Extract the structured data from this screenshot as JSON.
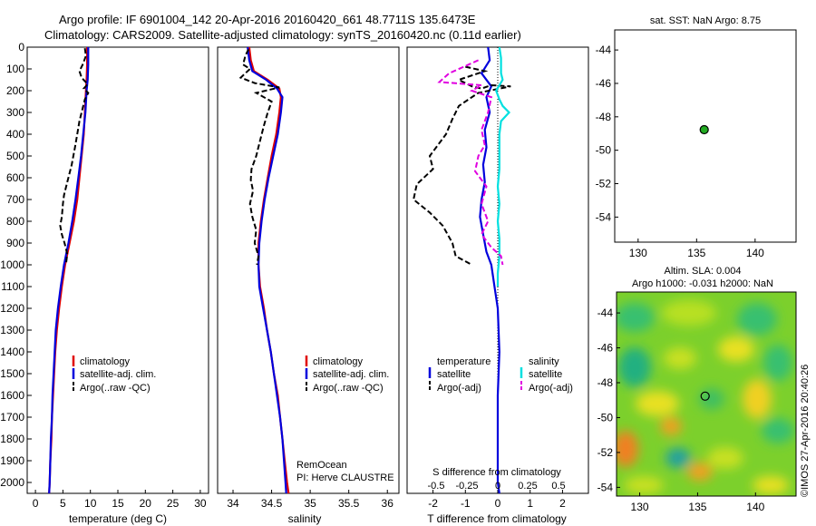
{
  "title": {
    "line1": "Argo profile: IF 6901004_142 20-Apr-2016 20160420_661 48.7711S 135.6473E",
    "line2": "Climatology: CARS2009. Satellite-adjusted climatology: synTS_20160420.nc (0.11d earlier)"
  },
  "colors": {
    "climatology": "#e00000",
    "satellite": "#0000dd",
    "argo": "#000000",
    "salinity_sat": "#00e0e0",
    "salinity_argo": "#e000e0",
    "marker_fill": "#22aa22"
  },
  "depth_axis": {
    "ylim": [
      0,
      2050
    ],
    "ticks": [
      "0",
      "100",
      "200",
      "300",
      "400",
      "500",
      "600",
      "700",
      "800",
      "900",
      "1000",
      "1100",
      "1200",
      "1300",
      "1400",
      "1500",
      "1600",
      "1700",
      "1800",
      "1900",
      "2000"
    ]
  },
  "chart_data": [
    {
      "type": "line",
      "panel": "temperature",
      "xlabel": "temperature (deg C)",
      "xlim": [
        -1.5,
        31.5
      ],
      "xticks": [
        "0",
        "5",
        "10",
        "15",
        "20",
        "25",
        "30"
      ],
      "legend": [
        "climatology",
        "satellite-adj. clim.",
        "Argo(..raw -QC)"
      ],
      "series": [
        {
          "name": "climatology",
          "color": "#e00000",
          "dash": false,
          "points": [
            [
              9.4,
              0
            ],
            [
              9.4,
              80
            ],
            [
              9.3,
              150
            ],
            [
              9.2,
              200
            ],
            [
              9.0,
              300
            ],
            [
              8.8,
              400
            ],
            [
              8.4,
              500
            ],
            [
              8.0,
              600
            ],
            [
              7.6,
              700
            ],
            [
              7.0,
              800
            ],
            [
              6.2,
              900
            ],
            [
              5.4,
              1000
            ],
            [
              4.8,
              1100
            ],
            [
              4.3,
              1200
            ],
            [
              3.9,
              1300
            ],
            [
              3.6,
              1400
            ],
            [
              3.4,
              1500
            ],
            [
              3.2,
              1600
            ],
            [
              3.0,
              1700
            ],
            [
              2.9,
              1800
            ],
            [
              2.7,
              1900
            ],
            [
              2.6,
              2000
            ],
            [
              2.5,
              2050
            ]
          ]
        },
        {
          "name": "satellite-adj. clim.",
          "color": "#0000dd",
          "dash": false,
          "points": [
            [
              9.6,
              0
            ],
            [
              9.6,
              80
            ],
            [
              9.5,
              150
            ],
            [
              9.3,
              200
            ],
            [
              9.1,
              300
            ],
            [
              8.7,
              400
            ],
            [
              8.3,
              500
            ],
            [
              7.8,
              600
            ],
            [
              7.3,
              700
            ],
            [
              6.7,
              800
            ],
            [
              6.0,
              900
            ],
            [
              5.2,
              1000
            ],
            [
              4.6,
              1100
            ],
            [
              4.1,
              1200
            ],
            [
              3.7,
              1300
            ],
            [
              3.5,
              1400
            ],
            [
              3.3,
              1500
            ],
            [
              3.1,
              1600
            ],
            [
              3.0,
              1700
            ],
            [
              2.8,
              1800
            ],
            [
              2.7,
              1900
            ],
            [
              2.6,
              2000
            ],
            [
              2.5,
              2050
            ]
          ]
        },
        {
          "name": "Argo(..raw -QC)",
          "color": "#000000",
          "dash": true,
          "points": [
            [
              9.0,
              5
            ],
            [
              9.2,
              40
            ],
            [
              8.6,
              80
            ],
            [
              8.0,
              110
            ],
            [
              8.4,
              140
            ],
            [
              9.5,
              170
            ],
            [
              8.8,
              190
            ],
            [
              9.6,
              210
            ],
            [
              9.0,
              240
            ],
            [
              8.5,
              290
            ],
            [
              8.0,
              340
            ],
            [
              7.6,
              400
            ],
            [
              7.2,
              460
            ],
            [
              6.6,
              540
            ],
            [
              5.8,
              620
            ],
            [
              5.2,
              680
            ],
            [
              5.0,
              720
            ],
            [
              4.8,
              780
            ],
            [
              4.5,
              820
            ],
            [
              4.8,
              860
            ],
            [
              5.3,
              900
            ],
            [
              5.8,
              950
            ],
            [
              5.6,
              990
            ]
          ]
        }
      ]
    },
    {
      "type": "line",
      "panel": "salinity",
      "xlabel": "salinity",
      "xlim": [
        33.8,
        36.15
      ],
      "xticks": [
        "34",
        "34.5",
        "35",
        "35.5",
        "36"
      ],
      "legend": [
        "climatology",
        "satellite-adj. clim.",
        "Argo(..raw -QC)"
      ],
      "annotation": [
        "RemOcean",
        "PI: Herve CLAUSTRE"
      ],
      "series": [
        {
          "name": "climatology",
          "color": "#e00000",
          "dash": false,
          "points": [
            [
              34.21,
              0
            ],
            [
              34.23,
              60
            ],
            [
              34.27,
              110
            ],
            [
              34.45,
              150
            ],
            [
              34.6,
              190
            ],
            [
              34.62,
              230
            ],
            [
              34.6,
              300
            ],
            [
              34.56,
              400
            ],
            [
              34.5,
              500
            ],
            [
              34.45,
              600
            ],
            [
              34.4,
              700
            ],
            [
              34.36,
              800
            ],
            [
              34.33,
              900
            ],
            [
              34.33,
              1000
            ],
            [
              34.35,
              1100
            ],
            [
              34.4,
              1200
            ],
            [
              34.44,
              1300
            ],
            [
              34.49,
              1400
            ],
            [
              34.53,
              1500
            ],
            [
              34.58,
              1600
            ],
            [
              34.61,
              1700
            ],
            [
              34.64,
              1800
            ],
            [
              34.67,
              1900
            ],
            [
              34.7,
              2000
            ],
            [
              34.72,
              2050
            ]
          ]
        },
        {
          "name": "satellite-adj. clim.",
          "color": "#0000dd",
          "dash": false,
          "points": [
            [
              34.19,
              0
            ],
            [
              34.21,
              60
            ],
            [
              34.25,
              110
            ],
            [
              34.43,
              150
            ],
            [
              34.57,
              190
            ],
            [
              34.64,
              230
            ],
            [
              34.62,
              300
            ],
            [
              34.58,
              400
            ],
            [
              34.52,
              500
            ],
            [
              34.46,
              600
            ],
            [
              34.41,
              700
            ],
            [
              34.37,
              800
            ],
            [
              34.34,
              900
            ],
            [
              34.33,
              1000
            ],
            [
              34.34,
              1100
            ],
            [
              34.39,
              1200
            ],
            [
              34.44,
              1300
            ],
            [
              34.49,
              1400
            ],
            [
              34.53,
              1500
            ],
            [
              34.57,
              1600
            ],
            [
              34.61,
              1700
            ],
            [
              34.64,
              1800
            ],
            [
              34.66,
              1900
            ],
            [
              34.68,
              2000
            ],
            [
              34.69,
              2050
            ]
          ]
        },
        {
          "name": "Argo(..raw -QC)",
          "color": "#000000",
          "dash": true,
          "points": [
            [
              34.2,
              10
            ],
            [
              34.16,
              40
            ],
            [
              34.13,
              80
            ],
            [
              34.22,
              100
            ],
            [
              34.1,
              140
            ],
            [
              34.28,
              165
            ],
            [
              34.6,
              185
            ],
            [
              34.3,
              210
            ],
            [
              34.5,
              250
            ],
            [
              34.45,
              300
            ],
            [
              34.4,
              360
            ],
            [
              34.35,
              430
            ],
            [
              34.3,
              500
            ],
            [
              34.24,
              560
            ],
            [
              34.23,
              610
            ],
            [
              34.26,
              660
            ],
            [
              34.22,
              720
            ],
            [
              34.25,
              780
            ],
            [
              34.3,
              840
            ],
            [
              34.28,
              900
            ],
            [
              34.33,
              960
            ],
            [
              34.31,
              1000
            ]
          ]
        }
      ]
    },
    {
      "type": "line",
      "panel": "difference",
      "xlabel": "T difference from climatology",
      "xlabel_top": "S difference from climatology",
      "xlim": [
        -2.8,
        2.8
      ],
      "xticks": [
        "-2",
        "-1",
        "0",
        "1",
        "2"
      ],
      "xticks_s": [
        "-0.5",
        "-0.25",
        "0",
        "0.25",
        "0.5"
      ],
      "legend_temperature_title": "temperature",
      "legend_salinity_title": "salinity",
      "legend_temperature": [
        "satellite",
        "Argo(-adj)"
      ],
      "legend_salinity": [
        "satellite",
        "Argo(-adj)"
      ],
      "series": [
        {
          "name": "temperature satellite",
          "color": "#0000dd",
          "dash": false,
          "points": [
            [
              -0.3,
              0
            ],
            [
              -0.25,
              60
            ],
            [
              -0.5,
              120
            ],
            [
              -0.2,
              180
            ],
            [
              -0.35,
              230
            ],
            [
              -0.25,
              300
            ],
            [
              -0.4,
              380
            ],
            [
              -0.35,
              460
            ],
            [
              -0.45,
              540
            ],
            [
              -0.4,
              620
            ],
            [
              -0.5,
              700
            ],
            [
              -0.55,
              780
            ],
            [
              -0.45,
              860
            ],
            [
              -0.35,
              940
            ],
            [
              -0.2,
              1000
            ],
            [
              -0.1,
              1100
            ],
            [
              0.0,
              1200
            ],
            [
              0.05,
              1400
            ],
            [
              0.0,
              1600
            ],
            [
              0.0,
              1800
            ],
            [
              0.0,
              2000
            ],
            [
              0.05,
              2050
            ]
          ]
        },
        {
          "name": "temperature Argo(-adj)",
          "color": "#000000",
          "dash": true,
          "points": [
            [
              -1.0,
              90
            ],
            [
              -0.4,
              110
            ],
            [
              -1.2,
              150
            ],
            [
              -0.8,
              180
            ],
            [
              -0.5,
              190
            ],
            [
              -0.2,
              175
            ],
            [
              0.4,
              180
            ],
            [
              -0.6,
              210
            ],
            [
              -1.2,
              270
            ],
            [
              -1.4,
              330
            ],
            [
              -1.6,
              400
            ],
            [
              -2.1,
              500
            ],
            [
              -2.0,
              560
            ],
            [
              -2.5,
              630
            ],
            [
              -2.6,
              700
            ],
            [
              -2.1,
              760
            ],
            [
              -1.7,
              820
            ],
            [
              -1.4,
              900
            ],
            [
              -1.3,
              960
            ],
            [
              -0.8,
              1000
            ]
          ]
        },
        {
          "name": "salinity satellite",
          "color": "#00e0e0",
          "dash": false,
          "points": [
            [
              0.05,
              0
            ],
            [
              0.1,
              50
            ],
            [
              0.1,
              120
            ],
            [
              0.15,
              150
            ],
            [
              -0.05,
              200
            ],
            [
              0.05,
              240
            ],
            [
              0.15,
              270
            ],
            [
              0.35,
              300
            ],
            [
              0.1,
              340
            ],
            [
              0.05,
              400
            ],
            [
              0.05,
              480
            ],
            [
              0.05,
              560
            ],
            [
              0.0,
              640
            ],
            [
              0.05,
              720
            ],
            [
              0.0,
              800
            ],
            [
              0.05,
              880
            ],
            [
              0.05,
              960
            ],
            [
              0.0,
              1040
            ],
            [
              0.0,
              1100
            ]
          ]
        },
        {
          "name": "salinity Argo(-adj)",
          "color": "#e000e0",
          "dash": true,
          "points": [
            [
              -0.6,
              60
            ],
            [
              -0.9,
              80
            ],
            [
              -1.5,
              120
            ],
            [
              -1.8,
              160
            ],
            [
              -0.5,
              175
            ],
            [
              -0.8,
              200
            ],
            [
              -0.2,
              230
            ],
            [
              -0.3,
              300
            ],
            [
              -0.5,
              380
            ],
            [
              -0.4,
              450
            ],
            [
              -0.6,
              500
            ],
            [
              -0.7,
              570
            ],
            [
              -0.35,
              640
            ],
            [
              -0.5,
              720
            ],
            [
              -0.3,
              800
            ],
            [
              -0.5,
              860
            ],
            [
              -0.2,
              920
            ],
            [
              0.1,
              960
            ],
            [
              0.15,
              1000
            ]
          ]
        }
      ]
    },
    {
      "type": "scatter",
      "panel": "sst-map",
      "title": "sat. SST: NaN Argo: 8.75",
      "xlim": [
        128,
        143.5
      ],
      "ylim": [
        -55.5,
        -42.8
      ],
      "xticks": [
        "130",
        "135",
        "140"
      ],
      "yticks": [
        "-44",
        "-46",
        "-48",
        "-50",
        "-52",
        "-54"
      ],
      "points": [
        {
          "lon": 135.65,
          "lat": -48.77
        }
      ]
    },
    {
      "type": "heatmap",
      "panel": "sla-map",
      "title_line1": "Altim. SLA: 0.004",
      "title_line2": "Argo h1000: -0.031 h2000: NaN",
      "xlim": [
        128,
        143.5
      ],
      "ylim": [
        -54.5,
        -42.8
      ],
      "xticks": [
        "130",
        "135",
        "140"
      ],
      "yticks": [
        "-44",
        "-46",
        "-48",
        "-50",
        "-52",
        "-54"
      ],
      "points": [
        {
          "lon": 135.65,
          "lat": -48.77
        }
      ]
    }
  ],
  "watermark": "©IMOS 27-Apr-2016 20:40:26"
}
